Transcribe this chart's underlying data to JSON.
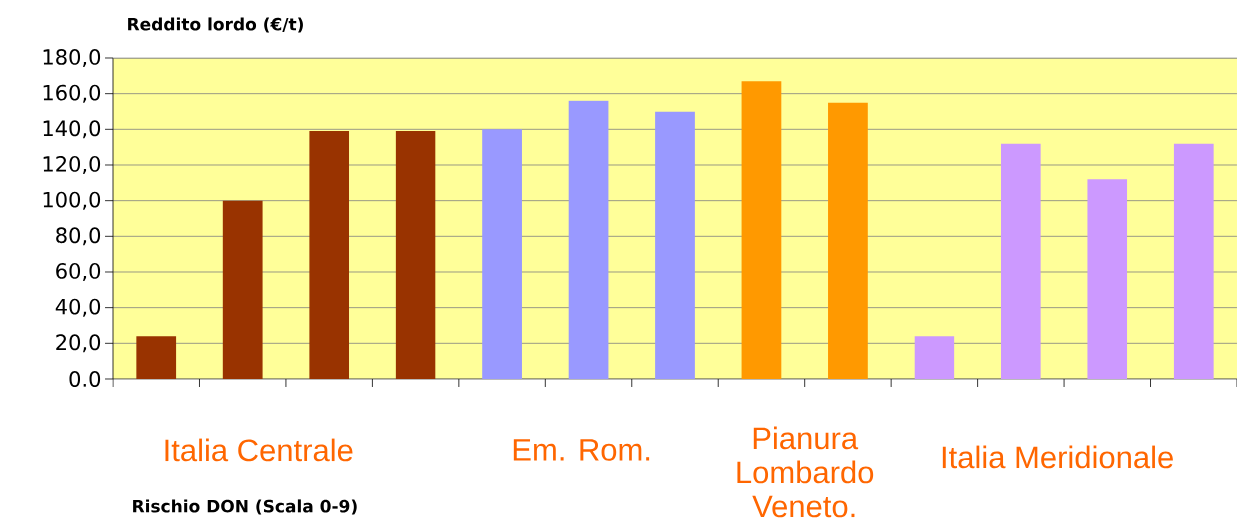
{
  "chart_data": {
    "type": "bar",
    "ylabel": "Reddito lordo (€/t)",
    "categories": [
      null,
      null,
      null,
      null,
      null,
      null,
      null,
      null,
      null,
      null,
      null,
      null,
      null
    ],
    "values": [
      24,
      100,
      139,
      139,
      140,
      156,
      150,
      167,
      155,
      24,
      132,
      112,
      132
    ],
    "colors": [
      "#993300",
      "#993300",
      "#993300",
      "#993300",
      "#9999ff",
      "#9999ff",
      "#9999ff",
      "#ff9900",
      "#ff9900",
      "#cc99ff",
      "#cc99ff",
      "#cc99ff",
      "#cc99ff"
    ],
    "ylim": [
      0,
      180
    ],
    "yticks": [
      {
        "value": 0,
        "label": "0.0"
      },
      {
        "value": 20,
        "label": "20,0"
      },
      {
        "value": 40,
        "label": "40,0"
      },
      {
        "value": 60,
        "label": "60,0"
      },
      {
        "value": 80,
        "label": "80,0"
      },
      {
        "value": 100,
        "label": "100,0"
      },
      {
        "value": 120,
        "label": "120,0"
      },
      {
        "value": 140,
        "label": "140,0"
      },
      {
        "value": 160,
        "label": "160,0"
      },
      {
        "value": 180,
        "label": "180,0"
      }
    ],
    "grid": "y",
    "annotations": [
      "Italia Centrale",
      "Em. Rom.",
      "Pianura Lombardo Veneto.",
      "Italia Meridionale",
      "Rischio DON (Scala 0-9)"
    ]
  }
}
